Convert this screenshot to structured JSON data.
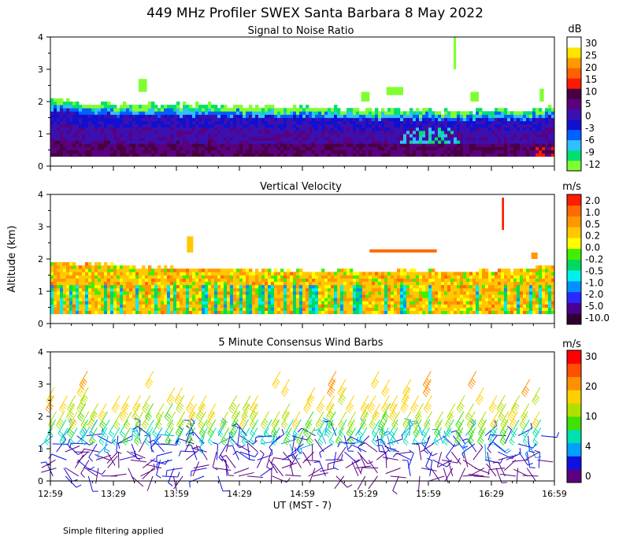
{
  "title": "449 MHz Profiler SWEX Santa Barbara  8 May 2022",
  "footer_note": "Simple filtering applied",
  "ylabel": "Altitude (km)",
  "xlabel": "UT  (MST - 7)",
  "colors": {
    "snr_scale": [
      "#80ff30",
      "#00e070",
      "#30c0ff",
      "#0060ff",
      "#1010d0",
      "#3c10b0",
      "#5a0080",
      "#480040",
      "#ff1800",
      "#ff6000",
      "#ff9a00",
      "#ffe400",
      "#ffffff"
    ],
    "vv_scale": [
      "#300030",
      "#4a0090",
      "#2828ff",
      "#0090ff",
      "#00f0f0",
      "#00d860",
      "#40f000",
      "#ffff00",
      "#ffc800",
      "#ff9800",
      "#ff6a00",
      "#ff1c00"
    ],
    "wind_scale": [
      "#5a0080",
      "#1010e0",
      "#00a0ff",
      "#00e0b0",
      "#40e000",
      "#b0e000",
      "#ffd000",
      "#ff9000",
      "#ff5000",
      "#ff0000"
    ]
  },
  "chart_data": [
    {
      "type": "heatmap",
      "panel": "snr",
      "title": "Signal to Noise Ratio",
      "unit": "dB",
      "colorbar_labels": [
        "30",
        "25",
        "20",
        "15",
        "10",
        "5",
        "0",
        "-3",
        "-6",
        "-9",
        "-12"
      ],
      "x_ticks": [
        "12:59",
        "13:29",
        "13:59",
        "14:29",
        "14:59",
        "15:29",
        "15:59",
        "16:29",
        "16:59"
      ],
      "xlim": [
        0,
        240
      ],
      "y_ticks": [
        "0",
        "1",
        "2",
        "3",
        "4"
      ],
      "ylim": [
        0,
        4
      ],
      "top_altitude_km": [
        2.0,
        1.9,
        1.9,
        1.85,
        1.85,
        1.85,
        1.85,
        1.85,
        1.8,
        1.8,
        1.8,
        1.8,
        1.75,
        1.75,
        1.75,
        1.7,
        1.7,
        1.7,
        1.7,
        1.65,
        1.65,
        1.7,
        1.7,
        1.7,
        1.75
      ]
    },
    {
      "type": "heatmap",
      "panel": "vertical_velocity",
      "title": "Vertical Velocity",
      "unit": "m/s",
      "colorbar_labels": [
        "2.0",
        "1.0",
        "0.5",
        "0.2",
        "0.0",
        "-0.2",
        "-0.5",
        "-1.0",
        "-2.0",
        "-5.0",
        "-10.0"
      ],
      "xlim": [
        0,
        240
      ],
      "y_ticks": [
        "0",
        "1",
        "2",
        "3",
        "4"
      ],
      "ylim": [
        0,
        4
      ],
      "top_altitude_km": [
        1.85,
        1.8,
        1.8,
        1.75,
        1.7,
        1.7,
        1.65,
        1.65,
        1.65,
        1.65,
        1.6,
        1.6,
        1.6,
        1.6,
        1.6,
        1.55,
        1.55,
        1.6,
        1.6,
        1.55,
        1.55,
        1.6,
        1.6,
        1.65,
        1.75
      ]
    },
    {
      "type": "wind_barbs",
      "panel": "wind_barbs",
      "title": "5 Minute Consensus Wind Barbs",
      "unit": "m/s",
      "colorbar_labels": [
        "30",
        "20",
        "10",
        "4",
        "0"
      ],
      "xlim": [
        0,
        240
      ],
      "y_ticks": [
        "0",
        "1",
        "2",
        "3",
        "4"
      ],
      "ylim": [
        0,
        4
      ],
      "speed_by_altitude_ms": [
        {
          "alt_km": 0.25,
          "speed": 2
        },
        {
          "alt_km": 0.75,
          "speed": 3
        },
        {
          "alt_km": 1.25,
          "speed": 6
        },
        {
          "alt_km": 1.75,
          "speed": 12
        },
        {
          "alt_km": 2.25,
          "speed": 18
        },
        {
          "alt_km": 2.75,
          "speed": 20
        },
        {
          "alt_km": 3.25,
          "speed": 22
        }
      ]
    }
  ]
}
